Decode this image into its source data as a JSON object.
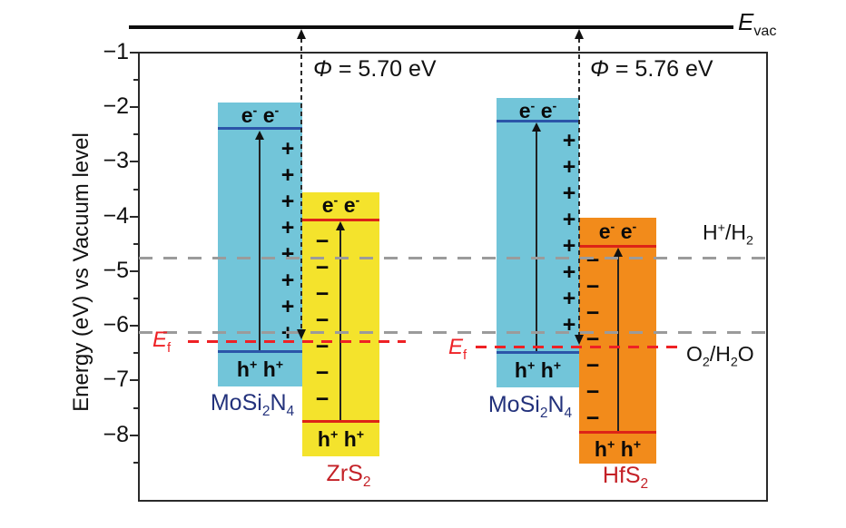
{
  "axis": {
    "title": "Energy (eV) vs Vacuum level",
    "ticks": [
      "−1",
      "−2",
      "−3",
      "−4",
      "−5",
      "−6",
      "−7",
      "−8"
    ]
  },
  "vacuum": {
    "symbol": "E",
    "sub": "vac"
  },
  "work_functions": {
    "left": {
      "symbol": "Φ",
      "value": " = 5.70 eV"
    },
    "right": {
      "symbol": "Φ",
      "value": " = 5.76 eV"
    }
  },
  "fermi": {
    "symbol": "E",
    "sub": "f"
  },
  "carriers": {
    "e": "e",
    "minus": "-",
    "h": "h",
    "plus": "+"
  },
  "redox": {
    "h2": {
      "p1": "H",
      "sup": "+",
      "p2": "/H",
      "sub": "2"
    },
    "o2": {
      "p1": "O",
      "sub1": "2",
      "p2": "/H",
      "sub2": "2",
      "p3": "O"
    }
  },
  "materials": {
    "mosi2n4": {
      "p1": "MoSi",
      "sub1": "2",
      "p2": "N",
      "sub2": "4"
    },
    "zrs2": {
      "p1": "ZrS",
      "sub1": "2"
    },
    "hfs2": {
      "p1": "HfS",
      "sub1": "2"
    }
  },
  "charges": {
    "left_plus": {
      "symbol": "+",
      "count": 8
    },
    "left_minus": {
      "symbol": "−",
      "count": 7
    },
    "right_plus": {
      "symbol": "+",
      "count": 8
    },
    "right_minus": {
      "symbol": "−",
      "count": 7
    }
  },
  "colors": {
    "mosi2n4_box": "#72c5d9",
    "zrs2_box": "#f4e32c",
    "hfs2_box": "#f28b1b",
    "band_blue": "#2b55a8",
    "band_red": "#dd2417",
    "fermi_red": "#ee2125",
    "gray_dash": "#9b9b9b",
    "navy_text": "#23327c",
    "red_text": "#c42127"
  },
  "chart_data": {
    "type": "bar",
    "title": "Band alignment of MoSi2N4/ZrS2 and MoSi2N4/HfS2 heterostructures vs vacuum level",
    "ylabel": "Energy (eV) vs Vacuum level",
    "ylim": [
      -8.6,
      -1
    ],
    "yticks": [
      -1,
      -2,
      -3,
      -4,
      -5,
      -6,
      -7,
      -8
    ],
    "groups": [
      {
        "heterostructure": "MoSi2N4/ZrS2",
        "work_function_eV": 5.7,
        "materials": [
          {
            "name": "MoSi2N4",
            "box_top_eV": -1.9,
            "box_bottom_eV": -7.1,
            "cbm_eV": -2.4,
            "vbm_eV": -6.5
          },
          {
            "name": "ZrS2",
            "box_top_eV": -3.55,
            "box_bottom_eV": -8.4,
            "cbm_eV": -4.05,
            "vbm_eV": -7.75
          }
        ]
      },
      {
        "heterostructure": "MoSi2N4/HfS2",
        "work_function_eV": 5.76,
        "materials": [
          {
            "name": "MoSi2N4",
            "box_top_eV": -1.85,
            "box_bottom_eV": -7.1,
            "cbm_eV": -2.25,
            "vbm_eV": -6.5
          },
          {
            "name": "HfS2",
            "box_top_eV": -4.0,
            "box_bottom_eV": -8.45,
            "cbm_eV": -4.55,
            "vbm_eV": -7.95
          }
        ]
      }
    ],
    "reference_lines": [
      {
        "label": "E_vac",
        "style": "solid black",
        "note": "vacuum level, above axis"
      },
      {
        "label": "H+/H2",
        "energy_eV": -4.75,
        "style": "gray dashed"
      },
      {
        "label": "O2/H2O",
        "energy_eV": -6.1,
        "style": "gray dashed"
      },
      {
        "label": "E_f left",
        "energy_eV": -6.3,
        "style": "red dashed"
      },
      {
        "label": "E_f right",
        "energy_eV": -6.4,
        "style": "red dashed"
      }
    ],
    "legend_position": "none",
    "grid": false
  }
}
